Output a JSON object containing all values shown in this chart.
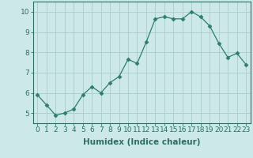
{
  "x": [
    0,
    1,
    2,
    3,
    4,
    5,
    6,
    7,
    8,
    9,
    10,
    11,
    12,
    13,
    14,
    15,
    16,
    17,
    18,
    19,
    20,
    21,
    22,
    23
  ],
  "y": [
    5.9,
    5.4,
    4.9,
    5.0,
    5.2,
    5.9,
    6.3,
    6.0,
    6.5,
    6.8,
    7.65,
    7.45,
    8.5,
    9.65,
    9.75,
    9.65,
    9.65,
    10.0,
    9.75,
    9.3,
    8.45,
    7.75,
    7.95,
    7.4
  ],
  "line_color": "#2e7d6e",
  "marker": "D",
  "marker_size": 2.5,
  "bg_color": "#cce8e8",
  "grid_color": "#aacccc",
  "xlabel": "Humidex (Indice chaleur)",
  "ylim": [
    4.5,
    10.5
  ],
  "xlim": [
    -0.5,
    23.5
  ],
  "yticks": [
    5,
    6,
    7,
    8,
    9,
    10
  ],
  "xticks": [
    0,
    1,
    2,
    3,
    4,
    5,
    6,
    7,
    8,
    9,
    10,
    11,
    12,
    13,
    14,
    15,
    16,
    17,
    18,
    19,
    20,
    21,
    22,
    23
  ],
  "xtick_labels": [
    "0",
    "1",
    "2",
    "3",
    "4",
    "5",
    "6",
    "7",
    "8",
    "9",
    "10",
    "11",
    "12",
    "13",
    "14",
    "15",
    "16",
    "17",
    "18",
    "19",
    "20",
    "21",
    "22",
    "23"
  ],
  "font_size": 6.5,
  "xlabel_fontsize": 7.5,
  "tick_color": "#2e6e60",
  "spine_color": "#2e6e60"
}
